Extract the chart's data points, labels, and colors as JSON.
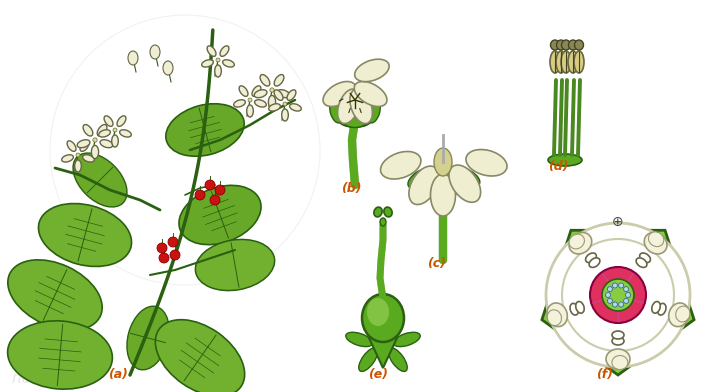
{
  "background_color": "#ffffff",
  "label_a": "(a)",
  "label_b": "(b)",
  "label_c": "(c)",
  "label_d": "(d)",
  "label_e": "(e)",
  "label_f": "(f)",
  "label_color": "#cc5500",
  "label_fontsize": 9,
  "green_dark": "#2a6010",
  "green_mid": "#5aaa20",
  "green_light": "#88cc44",
  "cream": "#f0eed0",
  "cream_dark": "#ccccaa",
  "yellow_stamen": "#d4cc88",
  "stamen_dark": "#888844",
  "red_berry": "#cc1111",
  "pink_ovary": "#e03060",
  "watermark_color": "#cccccc"
}
